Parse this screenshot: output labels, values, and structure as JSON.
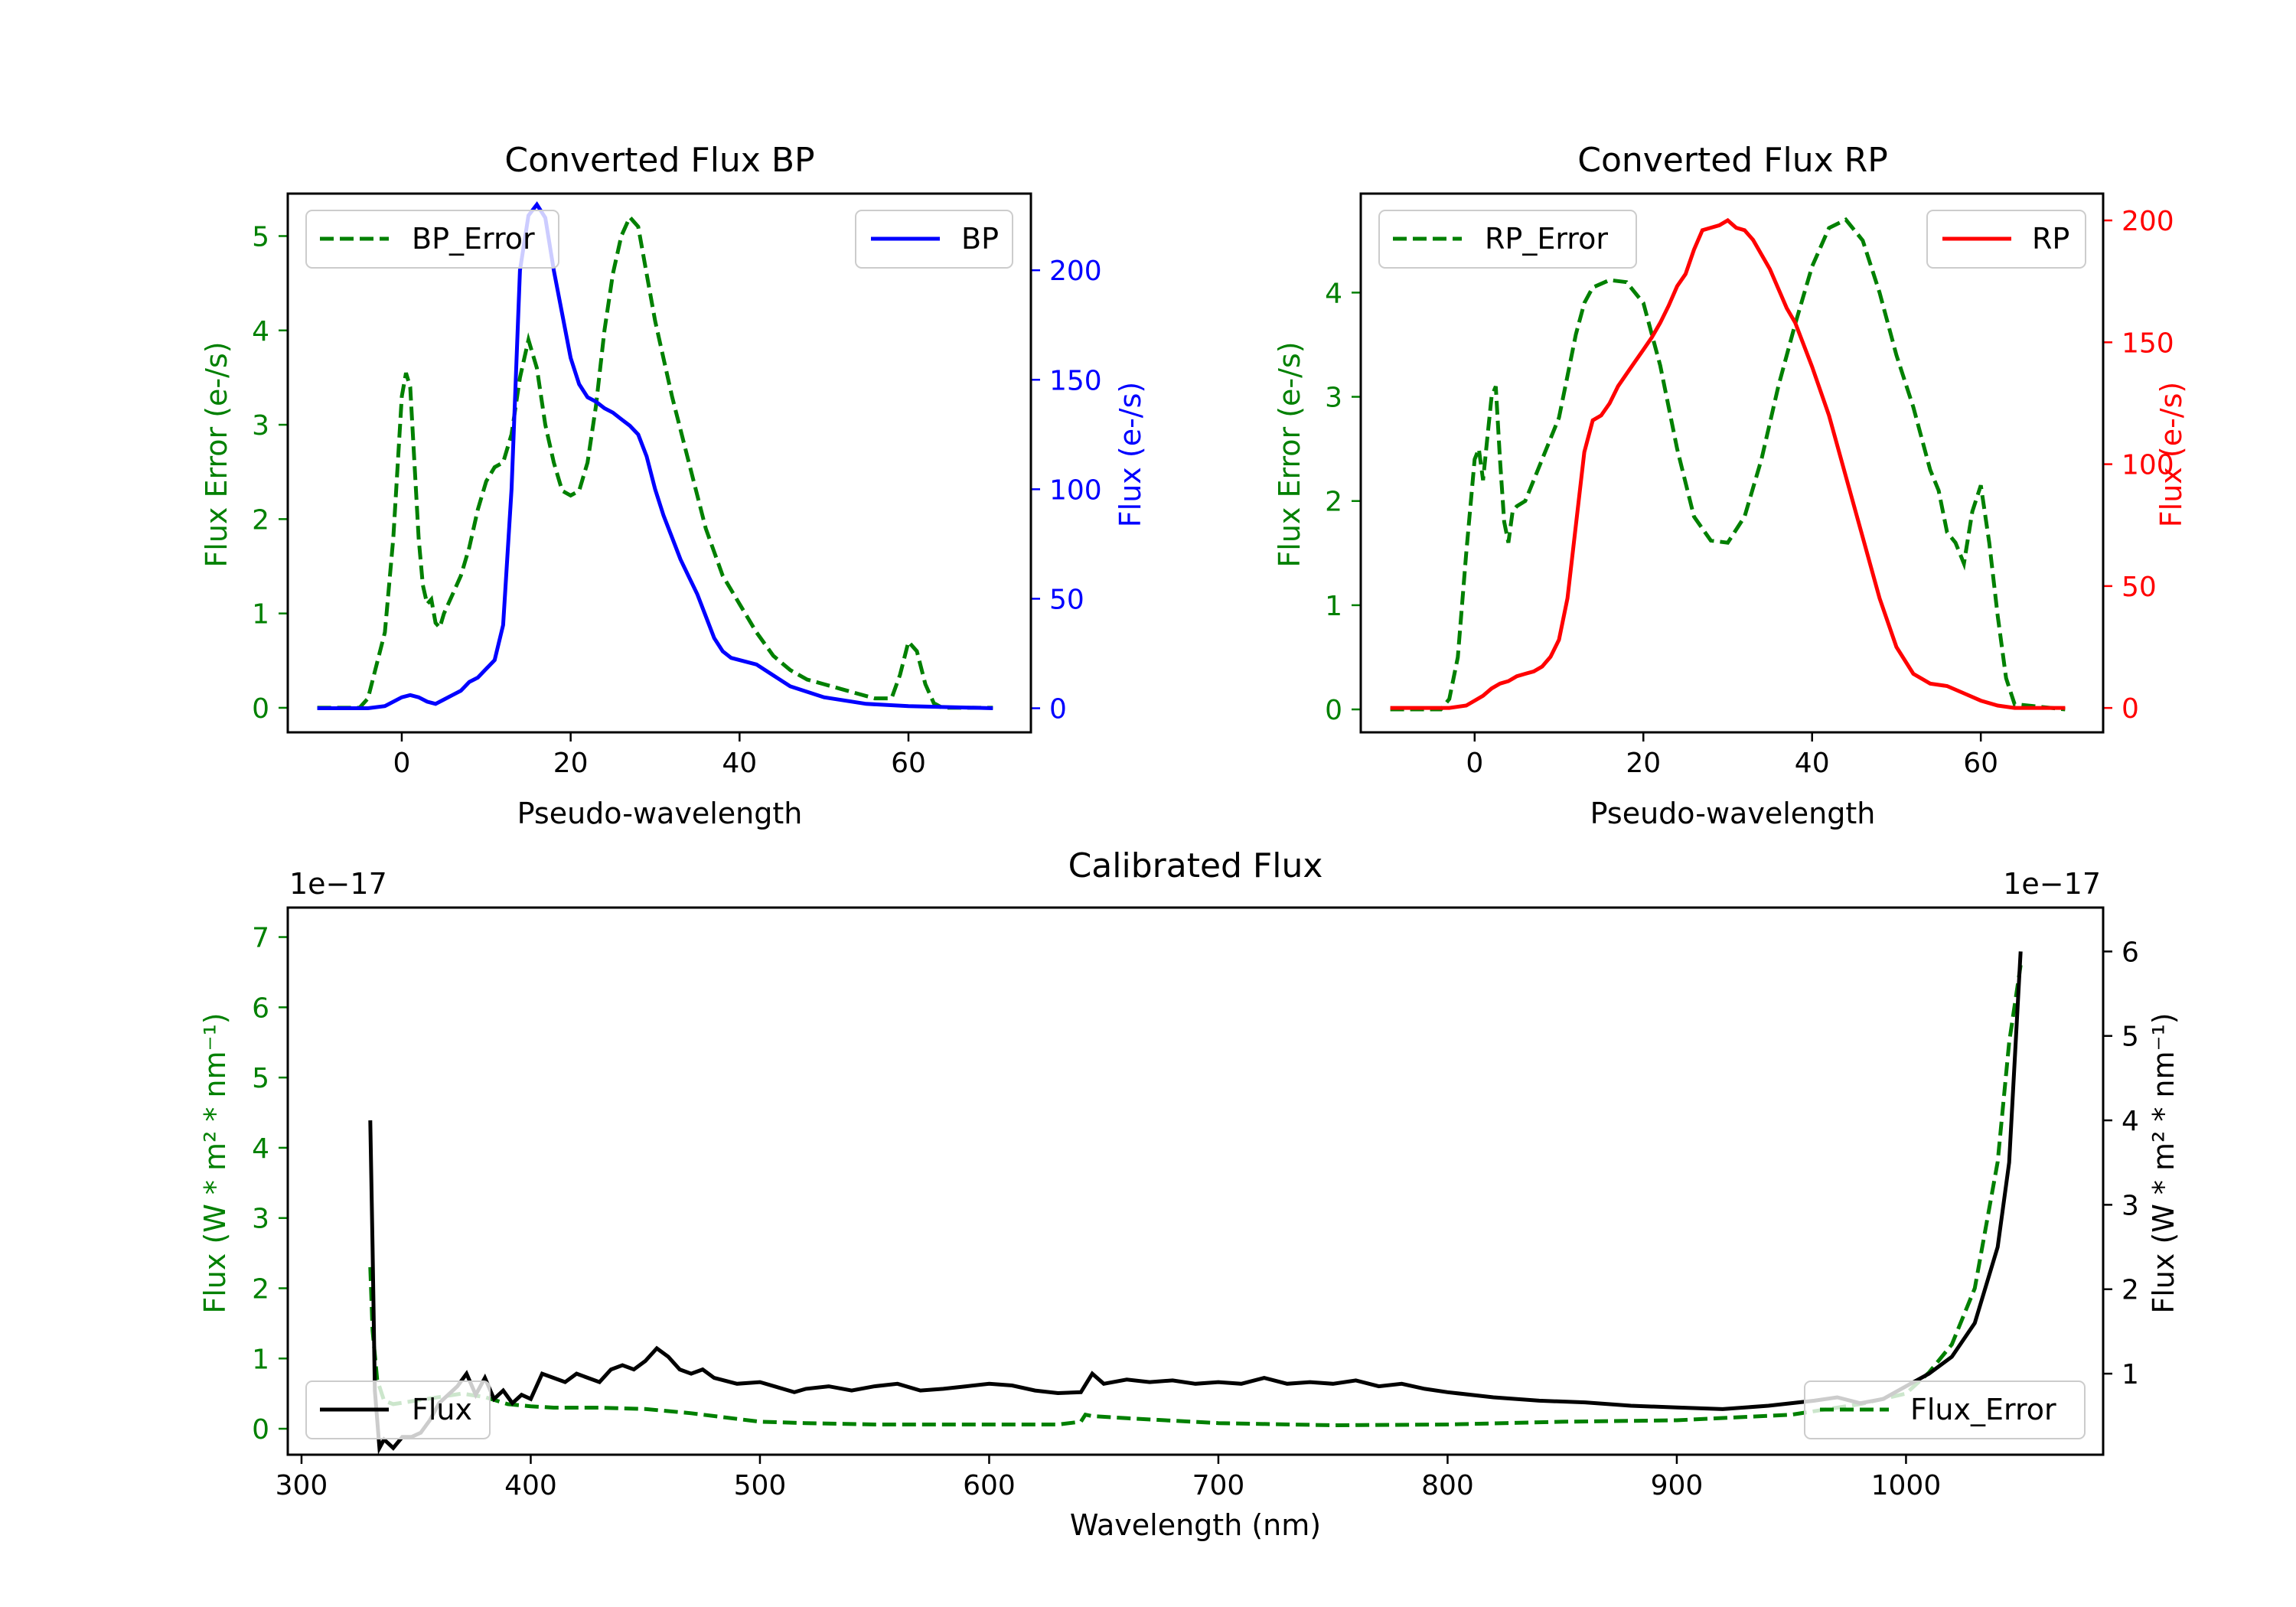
{
  "colors": {
    "green": "#008000",
    "blue": "#0000ff",
    "red": "#ff0000",
    "black": "#000000"
  },
  "chart_data": [
    {
      "type": "line",
      "title": "Converted Flux BP",
      "xlabel": "Pseudo-wavelength",
      "ylabel_left": "Flux Error (e-/s)",
      "ylabel_right": "Flux (e-/s)",
      "xlim": [
        -13.5,
        74.5
      ],
      "ylim_left": [
        -0.26,
        5.45
      ],
      "ylim_right": [
        -11,
        235
      ],
      "xticks": [
        0,
        20,
        40,
        60
      ],
      "yticks_left": [
        0,
        1,
        2,
        3,
        4,
        5
      ],
      "yticks_right": [
        0,
        50,
        100,
        150,
        200
      ],
      "legend": [
        {
          "label": "BP_Error",
          "position": "top-left"
        },
        {
          "label": "BP",
          "position": "top-right"
        }
      ],
      "series": [
        {
          "name": "BP_Error",
          "axis": "left",
          "style": "dashed",
          "color": "green",
          "x": [
            -10,
            -5,
            -4,
            -2,
            -1,
            0,
            0.5,
            1,
            1.5,
            2,
            2.5,
            3,
            3.5,
            4,
            4.5,
            5,
            6,
            7,
            8,
            9,
            10,
            11,
            12,
            13,
            14,
            15,
            16,
            17,
            18,
            19,
            20,
            21,
            22,
            23,
            24,
            25,
            26,
            27,
            28,
            29,
            30,
            32,
            34,
            36,
            38,
            40,
            42,
            44,
            46,
            48,
            50,
            52,
            54,
            56,
            57,
            58,
            59,
            60,
            61,
            62,
            63,
            64,
            66,
            70
          ],
          "values": [
            0,
            0,
            0.1,
            0.8,
            1.8,
            3.3,
            3.55,
            3.4,
            2.6,
            1.8,
            1.3,
            1.1,
            1.15,
            0.9,
            0.85,
            1.0,
            1.2,
            1.4,
            1.7,
            2.1,
            2.4,
            2.55,
            2.6,
            2.9,
            3.5,
            3.9,
            3.6,
            3.0,
            2.6,
            2.3,
            2.25,
            2.3,
            2.6,
            3.2,
            4.0,
            4.6,
            5.0,
            5.2,
            5.1,
            4.6,
            4.1,
            3.3,
            2.6,
            1.9,
            1.4,
            1.1,
            0.8,
            0.55,
            0.4,
            0.3,
            0.25,
            0.2,
            0.15,
            0.1,
            0.1,
            0.1,
            0.35,
            0.7,
            0.6,
            0.25,
            0.05,
            0,
            0,
            0
          ]
        },
        {
          "name": "BP",
          "axis": "right",
          "style": "solid",
          "color": "blue",
          "x": [
            -10,
            -4,
            -2,
            0,
            1,
            2,
            3,
            4,
            5,
            6,
            7,
            8,
            9,
            10,
            11,
            12,
            13,
            14,
            15,
            16,
            17,
            18,
            19,
            20,
            21,
            22,
            23,
            24,
            25,
            26,
            27,
            28,
            29,
            30,
            31,
            32,
            33,
            34,
            35,
            36,
            37,
            38,
            39,
            40,
            42,
            44,
            46,
            50,
            55,
            60,
            70
          ],
          "values": [
            0,
            0,
            1,
            5,
            6,
            5,
            3,
            2,
            4,
            6,
            8,
            12,
            14,
            18,
            22,
            38,
            100,
            200,
            225,
            230,
            224,
            200,
            180,
            160,
            148,
            142,
            140,
            137,
            135,
            132,
            129,
            125,
            115,
            100,
            88,
            78,
            68,
            60,
            52,
            42,
            32,
            26,
            23,
            22,
            20,
            15,
            10,
            5,
            2,
            1,
            0
          ]
        }
      ]
    },
    {
      "type": "line",
      "title": "Converted Flux RP",
      "xlabel": "Pseudo-wavelength",
      "ylabel_left": "Flux Error (e-/s)",
      "ylabel_right": "Flux (e-/s)",
      "xlim": [
        -13.5,
        74.5
      ],
      "ylim_left": [
        -0.22,
        4.95
      ],
      "ylim_right": [
        -10,
        211
      ],
      "xticks": [
        0,
        20,
        40,
        60
      ],
      "yticks_left": [
        0,
        1,
        2,
        3,
        4
      ],
      "yticks_right": [
        0,
        50,
        100,
        150,
        200
      ],
      "legend": [
        {
          "label": "RP_Error",
          "position": "top-left"
        },
        {
          "label": "RP",
          "position": "top-right"
        }
      ],
      "series": [
        {
          "name": "RP_Error",
          "axis": "left",
          "style": "dashed",
          "color": "green",
          "x": [
            -10,
            -4,
            -3,
            -2,
            -1,
            0,
            0.5,
            1,
            1.5,
            2,
            2.5,
            3,
            3.5,
            4,
            4.5,
            5,
            6,
            7,
            8,
            9,
            10,
            11,
            12,
            13,
            14,
            16,
            18,
            20,
            22,
            24,
            26,
            28,
            30,
            32,
            34,
            36,
            38,
            40,
            42,
            44,
            46,
            48,
            50,
            52,
            54,
            55,
            56,
            57,
            58,
            59,
            60,
            61,
            62,
            63,
            64,
            70
          ],
          "values": [
            0,
            0,
            0.1,
            0.5,
            1.5,
            2.4,
            2.5,
            2.2,
            2.6,
            3.0,
            3.1,
            2.4,
            1.8,
            1.6,
            1.9,
            1.95,
            2.0,
            2.2,
            2.4,
            2.6,
            2.8,
            3.2,
            3.6,
            3.9,
            4.05,
            4.12,
            4.1,
            3.9,
            3.3,
            2.5,
            1.85,
            1.62,
            1.6,
            1.85,
            2.4,
            3.1,
            3.7,
            4.25,
            4.62,
            4.7,
            4.5,
            4.0,
            3.4,
            2.9,
            2.3,
            2.1,
            1.7,
            1.6,
            1.4,
            1.9,
            2.15,
            1.6,
            0.9,
            0.3,
            0.05,
            0
          ]
        },
        {
          "name": "RP",
          "axis": "right",
          "style": "solid",
          "color": "red",
          "x": [
            -10,
            -3,
            -1,
            0,
            1,
            2,
            3,
            4,
            5,
            6,
            7,
            8,
            9,
            10,
            11,
            12,
            13,
            14,
            15,
            16,
            17,
            18,
            19,
            20,
            21,
            22,
            23,
            24,
            25,
            26,
            27,
            28,
            29,
            30,
            31,
            32,
            33,
            34,
            35,
            36,
            37,
            38,
            40,
            42,
            44,
            46,
            48,
            50,
            52,
            54,
            56,
            58,
            60,
            62,
            64,
            66,
            70
          ],
          "values": [
            0,
            0,
            1,
            3,
            5,
            8,
            10,
            11,
            13,
            14,
            15,
            17,
            21,
            28,
            45,
            75,
            105,
            118,
            120,
            125,
            132,
            137,
            142,
            147,
            152,
            158,
            165,
            173,
            178,
            188,
            196,
            197,
            198,
            200,
            197,
            196,
            192,
            186,
            180,
            172,
            164,
            158,
            140,
            120,
            95,
            70,
            45,
            25,
            14,
            10,
            9,
            6,
            3,
            1,
            0,
            0,
            0
          ]
        }
      ]
    },
    {
      "type": "line",
      "title": "Calibrated Flux",
      "xlabel": "Wavelength (nm)",
      "ylabel_left": "Flux (W * m² * nm⁻¹)",
      "ylabel_right": "Flux (W * m² * nm⁻¹)",
      "offset_left": "1e−17",
      "offset_right": "1e−17",
      "xlim": [
        294,
        1086
      ],
      "ylim_left": [
        -0.37,
        7.42
      ],
      "ylim_right": [
        0.04,
        6.52
      ],
      "xticks": [
        300,
        400,
        500,
        600,
        700,
        800,
        900,
        1000
      ],
      "yticks_left": [
        0,
        1,
        2,
        3,
        4,
        5,
        6,
        7
      ],
      "yticks_right": [
        1,
        2,
        3,
        4,
        5,
        6
      ],
      "legend": [
        {
          "label": "Flux",
          "position": "lower-left"
        },
        {
          "label": "Flux_Error",
          "position": "lower-right"
        }
      ],
      "series": [
        {
          "name": "Flux_Error",
          "axis": "left",
          "style": "dashed",
          "color": "green",
          "x": [
            330,
            331,
            333,
            336,
            340,
            350,
            360,
            370,
            380,
            390,
            400,
            410,
            420,
            430,
            450,
            470,
            490,
            500,
            520,
            550,
            600,
            630,
            640,
            642,
            645,
            660,
            700,
            750,
            800,
            850,
            900,
            950,
            980,
            1000,
            1010,
            1020,
            1030,
            1040,
            1045,
            1050
          ],
          "values": [
            2.3,
            1.4,
            0.7,
            0.4,
            0.35,
            0.4,
            0.45,
            0.5,
            0.45,
            0.35,
            0.32,
            0.3,
            0.3,
            0.3,
            0.28,
            0.22,
            0.14,
            0.1,
            0.08,
            0.06,
            0.06,
            0.06,
            0.1,
            0.2,
            0.18,
            0.15,
            0.08,
            0.05,
            0.06,
            0.1,
            0.12,
            0.2,
            0.35,
            0.5,
            0.8,
            1.2,
            2.0,
            3.8,
            5.5,
            6.6
          ]
        },
        {
          "name": "Flux",
          "axis": "right",
          "style": "solid",
          "color": "black",
          "x": [
            330,
            331,
            332,
            334,
            336,
            340,
            344,
            348,
            352,
            356,
            360,
            364,
            368,
            372,
            376,
            380,
            384,
            388,
            392,
            396,
            400,
            405,
            410,
            415,
            420,
            425,
            430,
            435,
            440,
            445,
            450,
            455,
            460,
            465,
            470,
            475,
            480,
            490,
            500,
            510,
            515,
            520,
            530,
            540,
            550,
            560,
            570,
            580,
            590,
            600,
            610,
            620,
            630,
            640,
            645,
            650,
            660,
            670,
            680,
            690,
            700,
            710,
            720,
            730,
            740,
            750,
            760,
            770,
            780,
            790,
            800,
            820,
            840,
            860,
            880,
            900,
            920,
            940,
            960,
            970,
            980,
            990,
            1000,
            1010,
            1020,
            1030,
            1040,
            1045,
            1050
          ],
          "values": [
            4.0,
            2.5,
            0.8,
            0.12,
            0.22,
            0.12,
            0.25,
            0.25,
            0.3,
            0.45,
            0.65,
            0.75,
            0.85,
            1.0,
            0.75,
            0.95,
            0.7,
            0.8,
            0.65,
            0.75,
            0.7,
            1.0,
            0.95,
            0.9,
            1.0,
            0.95,
            0.9,
            1.05,
            1.1,
            1.05,
            1.15,
            1.3,
            1.2,
            1.05,
            1.0,
            1.05,
            0.95,
            0.88,
            0.9,
            0.82,
            0.78,
            0.82,
            0.85,
            0.8,
            0.85,
            0.88,
            0.8,
            0.82,
            0.85,
            0.88,
            0.86,
            0.8,
            0.77,
            0.78,
            1.0,
            0.88,
            0.93,
            0.9,
            0.92,
            0.88,
            0.9,
            0.88,
            0.95,
            0.88,
            0.9,
            0.88,
            0.92,
            0.85,
            0.88,
            0.82,
            0.78,
            0.72,
            0.68,
            0.66,
            0.62,
            0.6,
            0.58,
            0.62,
            0.68,
            0.72,
            0.65,
            0.7,
            0.85,
            1.0,
            1.2,
            1.6,
            2.5,
            3.5,
            6.0
          ]
        }
      ]
    }
  ]
}
